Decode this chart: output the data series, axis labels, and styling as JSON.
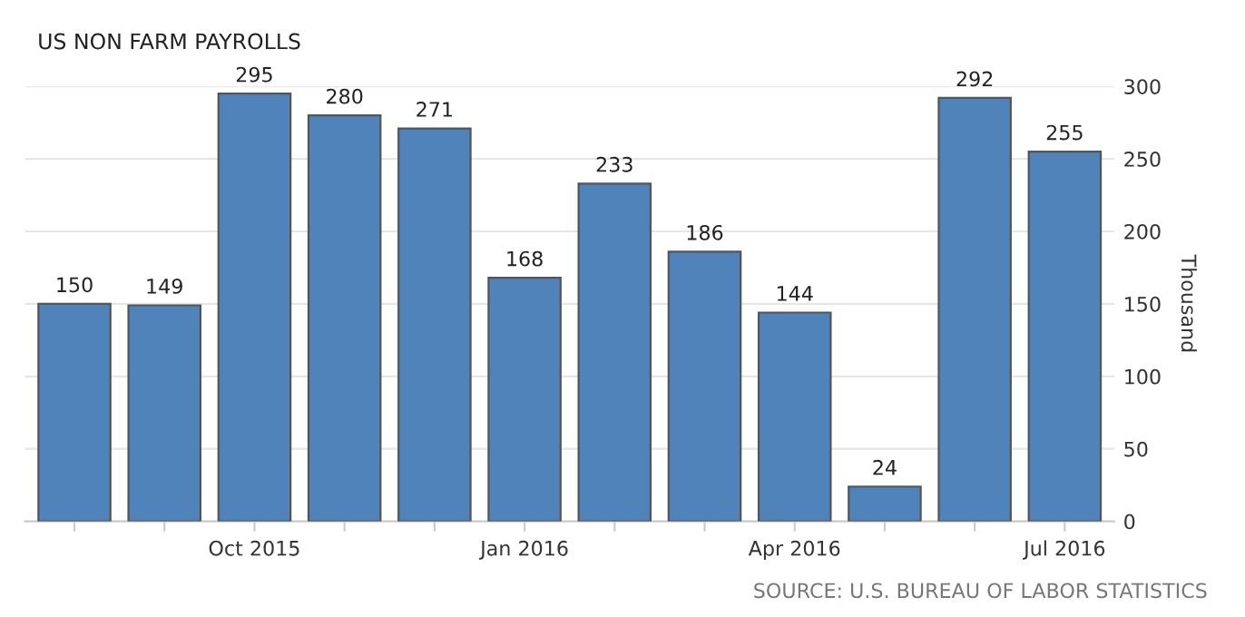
{
  "chart_data": {
    "type": "bar",
    "title": "US NON FARM PAYROLLS",
    "categories": [
      null,
      null,
      "Oct 2015",
      null,
      null,
      "Jan 2016",
      null,
      null,
      "Apr 2016",
      null,
      null,
      "Jul 2016"
    ],
    "values": [
      150,
      149,
      295,
      280,
      271,
      168,
      233,
      186,
      144,
      24,
      292,
      255
    ],
    "color": "#4f83b9",
    "ylabel": "Thousand",
    "ylim": [
      0,
      300
    ],
    "yticks": [
      0,
      50,
      100,
      150,
      200,
      250,
      300
    ],
    "grid": "y",
    "data_labels": true,
    "annotations": [
      "SOURCE: U.S. BUREAU OF LABOR STATISTICS"
    ]
  }
}
